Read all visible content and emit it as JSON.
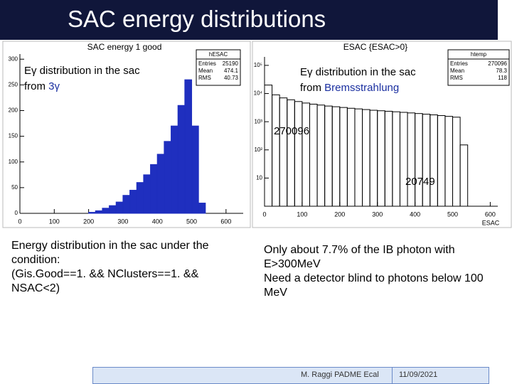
{
  "slide": {
    "title": "SAC energy distributions",
    "left_text": [
      "Energy distribution in the sac under the condition:",
      "(Gis.Good==1. && NClusters==1. && NSAC<2)"
    ],
    "right_text": [
      "Only about 7.7% of the IB photon with E>300MeV",
      "Need a detector blind to photons below 100 MeV"
    ],
    "footer": {
      "author": "M. Raggi PADME Ecal",
      "date": "11/09/2021"
    }
  },
  "chart_data": [
    {
      "type": "histogram",
      "title": "SAC energy  1 good",
      "color": "#1f2fbf",
      "log_y": false,
      "bins": [
        0,
        20,
        40,
        60,
        80,
        100,
        120,
        140,
        160,
        180,
        200,
        220,
        240,
        260,
        280,
        300,
        320,
        340,
        360,
        380,
        400,
        420,
        440,
        460,
        480,
        500,
        520,
        540,
        560,
        580,
        600
      ],
      "values": [
        0,
        0,
        0,
        0,
        0,
        0,
        0,
        0,
        0,
        0,
        2,
        5,
        10,
        15,
        22,
        35,
        45,
        60,
        75,
        95,
        115,
        140,
        170,
        210,
        260,
        170,
        20,
        0,
        0,
        0
      ],
      "xlim": [
        0,
        650
      ],
      "xticks": [
        0,
        100,
        200,
        300,
        400,
        500,
        600
      ],
      "ylim": [
        0,
        310
      ],
      "yticks": [
        0,
        50,
        100,
        150,
        200,
        250,
        300
      ],
      "stats": {
        "name": "hESAC",
        "rows": [
          {
            "label": "Entries",
            "value": 25190
          },
          {
            "label": "Mean",
            "value": 474.1
          },
          {
            "label": "RMS",
            "value": 40.73
          }
        ]
      },
      "annotation": [
        [
          {
            "text": "Eγ distribution in the sac"
          }
        ],
        [
          {
            "text": "from "
          },
          {
            "text": "3γ",
            "color": "#1a2fa0"
          }
        ]
      ]
    },
    {
      "type": "histogram",
      "title": "ESAC {ESAC>0}",
      "color": "#000000",
      "log_y": true,
      "x_label": "ESAC",
      "bins": [
        0,
        20,
        40,
        60,
        80,
        100,
        120,
        140,
        160,
        180,
        200,
        220,
        240,
        260,
        280,
        300,
        320,
        340,
        360,
        380,
        400,
        420,
        440,
        460,
        480,
        500,
        520,
        540
      ],
      "values": [
        20000,
        9000,
        7000,
        6000,
        5200,
        4600,
        4200,
        3900,
        3600,
        3400,
        3200,
        3000,
        2850,
        2700,
        2550,
        2450,
        2350,
        2250,
        2150,
        2050,
        1950,
        1850,
        1750,
        1650,
        1550,
        1450,
        150
      ],
      "xlim": [
        0,
        620
      ],
      "xticks": [
        0,
        100,
        200,
        300,
        400,
        500,
        600
      ],
      "ylim": [
        1,
        200000
      ],
      "yticks": [
        10,
        {
          "value": 100,
          "label": "10²"
        },
        {
          "value": 1000,
          "label": "10³"
        },
        {
          "value": 10000,
          "label": "10⁴"
        },
        {
          "value": 100000,
          "label": "10⁵"
        }
      ],
      "stats": {
        "name": "htemp",
        "rows": [
          {
            "label": "Entries",
            "value": 270096
          },
          {
            "label": "Mean",
            "value": 78.3
          },
          {
            "label": "RMS",
            "value": 118
          }
        ]
      },
      "annotation": [
        [
          {
            "text": "Eγ distribution in the sac"
          }
        ],
        [
          {
            "text": "from "
          },
          {
            "text": "Bremsstrahlung",
            "color": "#1a2fa0"
          }
        ]
      ],
      "count_labels": [
        270096,
        20749
      ]
    }
  ]
}
